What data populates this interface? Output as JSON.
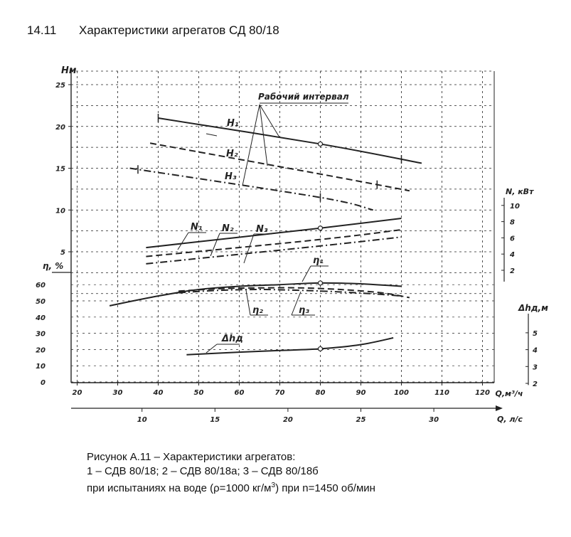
{
  "heading": {
    "number": "14.11",
    "title": "Характеристики агрегатов СД 80/18"
  },
  "caption": {
    "line1": "Рисунок А.11 – Характеристики агрегатов:",
    "line2": "1 – СДВ 80/18; 2 – СДВ 80/18а; 3 – СДВ 80/18б",
    "line3_a": "при испытаниях на воде (ρ=1000 кг/м",
    "line3_sup": "3",
    "line3_b": ") при n=1450 об/мин"
  },
  "chart_data": {
    "type": "line",
    "x_axis": {
      "label": "Q,м³/ч",
      "range": [
        15,
        125
      ],
      "ticks": [
        20,
        30,
        40,
        50,
        60,
        70,
        80,
        90,
        100,
        110,
        120
      ]
    },
    "x2_axis": {
      "label": "Q, л/с",
      "ticks": [
        10,
        15,
        20,
        25,
        30
      ]
    },
    "axes": {
      "H": {
        "label": "H,м",
        "range": [
          0,
          26
        ],
        "ticks": [
          5,
          10,
          15,
          20,
          25
        ]
      },
      "eta": {
        "label": "η, %",
        "range": [
          0,
          70
        ],
        "ticks": [
          0,
          10,
          20,
          30,
          40,
          50,
          60
        ]
      },
      "N": {
        "label": "N, кВт",
        "range": [
          0,
          12
        ],
        "ticks": [
          2,
          4,
          6,
          8,
          10
        ]
      },
      "dh": {
        "label": "Δhд,м",
        "range": [
          2,
          6
        ],
        "ticks": [
          2,
          3,
          4,
          5
        ]
      }
    },
    "grid": true,
    "annotation": "Рабочий интервал",
    "series": [
      {
        "name": "H1",
        "axis": "H",
        "style": "solid",
        "x": [
          40,
          80,
          105
        ],
        "y": [
          21,
          17.9,
          15.6
        ],
        "interval": [
          40,
          100
        ]
      },
      {
        "name": "H2",
        "axis": "H",
        "style": "dashed",
        "x": [
          38,
          80,
          102
        ],
        "y": [
          18,
          14.3,
          12.3
        ],
        "interval": [
          null,
          94
        ]
      },
      {
        "name": "H3",
        "axis": "H",
        "style": "dashdot",
        "x": [
          33,
          80,
          93
        ],
        "y": [
          15,
          11.5,
          10
        ],
        "interval": [
          35,
          80
        ]
      },
      {
        "name": "N1",
        "axis": "N",
        "style": "solid",
        "x": [
          37,
          80,
          100
        ],
        "y": [
          4.8,
          7.2,
          8.4
        ]
      },
      {
        "name": "N2",
        "axis": "N",
        "style": "dashed",
        "x": [
          37,
          80,
          100
        ],
        "y": [
          3.7,
          5.8,
          7.0
        ]
      },
      {
        "name": "N3",
        "axis": "N",
        "style": "dashdot",
        "x": [
          37,
          80,
          100
        ],
        "y": [
          2.8,
          5.0,
          6.1
        ]
      },
      {
        "name": "η1",
        "axis": "eta",
        "style": "solid",
        "x": [
          28,
          40,
          50,
          60,
          70,
          80,
          90,
          100
        ],
        "y": [
          47,
          53,
          57,
          59,
          60,
          61,
          60.5,
          59
        ]
      },
      {
        "name": "η2",
        "axis": "eta",
        "style": "dashed",
        "x": [
          45,
          55,
          65,
          75,
          85,
          95,
          102
        ],
        "y": [
          56,
          57.5,
          58,
          58,
          57,
          55,
          52
        ]
      },
      {
        "name": "η3",
        "axis": "eta",
        "style": "dashdot",
        "x": [
          45,
          55,
          65,
          75,
          85,
          95,
          100
        ],
        "y": [
          55,
          56.5,
          57,
          56.5,
          55.5,
          54,
          53
        ]
      },
      {
        "name": "Δhд",
        "axis": "dh",
        "style": "solid",
        "x": [
          47,
          60,
          70,
          80,
          90,
          98
        ],
        "y": [
          3.7,
          3.85,
          3.95,
          4.05,
          4.3,
          4.7
        ]
      }
    ],
    "labels": {
      "H1": "H₁",
      "H2": "H₂",
      "H3": "H₃",
      "N1": "N₁",
      "N2": "N₂",
      "N3": "N₃",
      "eta1": "η₁",
      "eta2": "η₂",
      "eta3": "η₃",
      "dh": "Δhд"
    },
    "marked_point_q": 80
  }
}
